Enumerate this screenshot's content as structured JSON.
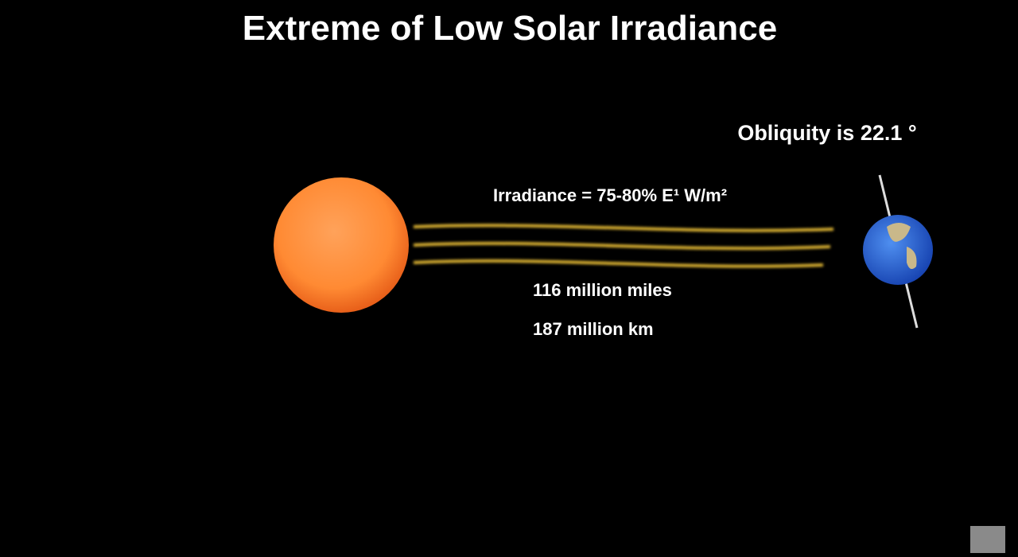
{
  "title": "Extreme of Low Solar Irradiance",
  "labels": {
    "obliquity": "Obliquity is 22.1 °",
    "irradiance": "Irradiance = 75-80% E¹ W/m²",
    "distance_miles": "116 million miles",
    "distance_km": "187 million km"
  }
}
